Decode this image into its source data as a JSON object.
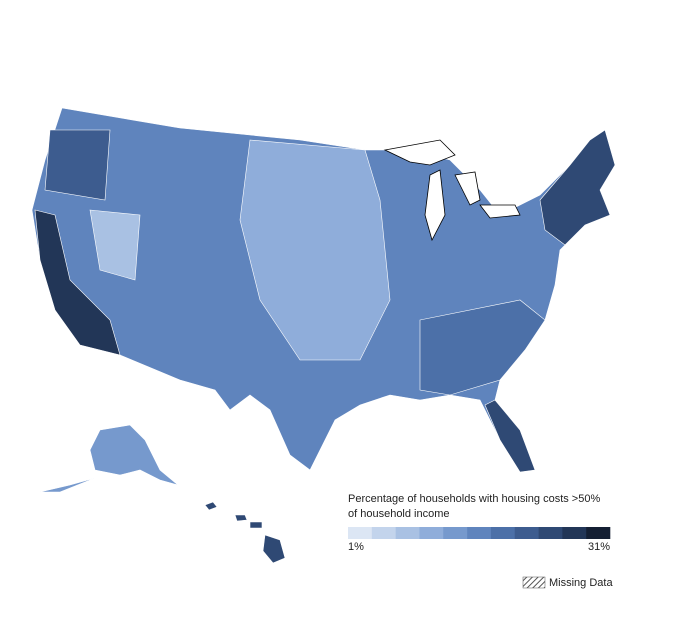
{
  "legend": {
    "title_lines": [
      "Percentage of households with housing costs >50%",
      "of household income"
    ],
    "min": {
      "value": 1,
      "label": "1%"
    },
    "max": {
      "value": 31,
      "label": "31%"
    },
    "colors": [
      "#dce6f4",
      "#c3d4ec",
      "#a9c1e3",
      "#8fadda",
      "#7699cd",
      "#5f84bd",
      "#4c70a8",
      "#3d5c8f",
      "#2f4974",
      "#223657",
      "#141f33"
    ]
  },
  "missing_label": "Missing Data"
}
